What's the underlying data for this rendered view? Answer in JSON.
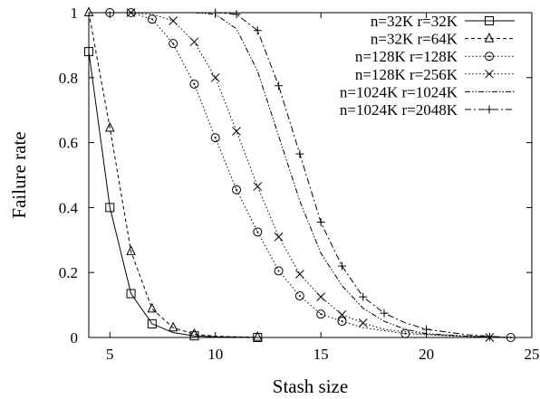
{
  "chart_data": {
    "type": "line",
    "title": "",
    "xlabel": "Stash size",
    "ylabel": "Failure rate",
    "xlim": [
      4,
      25
    ],
    "ylim": [
      0,
      1
    ],
    "xticks": [
      5,
      10,
      15,
      20,
      25
    ],
    "yticks": [
      0,
      0.2,
      0.4,
      0.6,
      0.8,
      1
    ],
    "ytick_labels": [
      "0",
      "0.2",
      "0.4",
      "0.6",
      "0.8",
      "1"
    ],
    "grid": false,
    "legend_position": "top-right",
    "series": [
      {
        "name": "n=32K r=32K",
        "line": "solid",
        "marker": "square",
        "points": [
          [
            4,
            0.88
          ],
          [
            5,
            0.4
          ],
          [
            6,
            0.135
          ],
          [
            7,
            0.042
          ],
          [
            8,
            0.015
          ],
          [
            9,
            0.005
          ],
          [
            10,
            0.002
          ],
          [
            11,
            0.001
          ],
          [
            12,
            0.0
          ]
        ],
        "marker_points": [
          [
            4,
            0.88
          ],
          [
            5,
            0.4
          ],
          [
            6,
            0.135
          ],
          [
            7,
            0.042
          ],
          [
            9,
            0.005
          ],
          [
            12,
            0.0
          ]
        ]
      },
      {
        "name": "n=32K r=64K",
        "line": "dashed",
        "marker": "triangle",
        "points": [
          [
            4,
            1.0
          ],
          [
            5,
            0.645
          ],
          [
            6,
            0.265
          ],
          [
            7,
            0.088
          ],
          [
            8,
            0.03
          ],
          [
            9,
            0.01
          ],
          [
            10,
            0.004
          ],
          [
            11,
            0.002
          ],
          [
            12,
            0.001
          ]
        ],
        "marker_points": [
          [
            4,
            1.0
          ],
          [
            5,
            0.645
          ],
          [
            6,
            0.265
          ],
          [
            7,
            0.088
          ],
          [
            8,
            0.03
          ],
          [
            9,
            0.01
          ],
          [
            12,
            0.001
          ]
        ]
      },
      {
        "name": "n=128K r=128K",
        "line": "dotted",
        "marker": "circle",
        "points": [
          [
            5,
            1.0
          ],
          [
            6,
            1.0
          ],
          [
            7,
            0.98
          ],
          [
            8,
            0.905
          ],
          [
            9,
            0.78
          ],
          [
            10,
            0.615
          ],
          [
            11,
            0.455
          ],
          [
            12,
            0.325
          ],
          [
            13,
            0.205
          ],
          [
            14,
            0.128
          ],
          [
            15,
            0.072
          ],
          [
            16,
            0.05
          ],
          [
            17,
            0.03
          ],
          [
            19,
            0.012
          ],
          [
            21,
            0.005
          ],
          [
            23,
            0.002
          ],
          [
            24,
            0.0
          ]
        ],
        "marker_points": [
          [
            5,
            1.0
          ],
          [
            6,
            1.0
          ],
          [
            7,
            0.98
          ],
          [
            8,
            0.905
          ],
          [
            9,
            0.78
          ],
          [
            10,
            0.615
          ],
          [
            11,
            0.455
          ],
          [
            12,
            0.325
          ],
          [
            13,
            0.205
          ],
          [
            14,
            0.128
          ],
          [
            15,
            0.072
          ],
          [
            16,
            0.05
          ],
          [
            19,
            0.012
          ],
          [
            24,
            0.0
          ]
        ]
      },
      {
        "name": "n=128K r=256K",
        "line": "dotted",
        "marker": "cross",
        "points": [
          [
            6,
            1.0
          ],
          [
            7,
            0.995
          ],
          [
            8,
            0.975
          ],
          [
            9,
            0.91
          ],
          [
            10,
            0.8
          ],
          [
            11,
            0.635
          ],
          [
            12,
            0.465
          ],
          [
            13,
            0.31
          ],
          [
            14,
            0.195
          ],
          [
            15,
            0.125
          ],
          [
            16,
            0.07
          ],
          [
            17,
            0.045
          ],
          [
            18,
            0.025
          ],
          [
            20,
            0.01
          ],
          [
            23,
            0.0
          ]
        ],
        "marker_points": [
          [
            6,
            1.0
          ],
          [
            8,
            0.975
          ],
          [
            9,
            0.91
          ],
          [
            10,
            0.8
          ],
          [
            11,
            0.635
          ],
          [
            12,
            0.465
          ],
          [
            13,
            0.31
          ],
          [
            14,
            0.195
          ],
          [
            15,
            0.125
          ],
          [
            16,
            0.07
          ],
          [
            17,
            0.045
          ],
          [
            23,
            0.0
          ]
        ]
      },
      {
        "name": "n=1024K r=1024K",
        "line": "dashdotdot",
        "marker": "none",
        "points": [
          [
            9,
            1.0
          ],
          [
            10,
            0.995
          ],
          [
            11,
            0.95
          ],
          [
            12,
            0.82
          ],
          [
            13,
            0.62
          ],
          [
            14,
            0.42
          ],
          [
            15,
            0.26
          ],
          [
            16,
            0.16
          ],
          [
            17,
            0.09
          ],
          [
            18,
            0.05
          ],
          [
            19,
            0.025
          ],
          [
            20,
            0.012
          ],
          [
            22,
            0.004
          ],
          [
            24,
            0.0
          ]
        ],
        "marker_points": []
      },
      {
        "name": "n=1024K r=2048K",
        "line": "dashdot",
        "marker": "plus",
        "points": [
          [
            10,
            1.0
          ],
          [
            11,
            0.995
          ],
          [
            12,
            0.945
          ],
          [
            13,
            0.775
          ],
          [
            14,
            0.565
          ],
          [
            15,
            0.355
          ],
          [
            16,
            0.22
          ],
          [
            17,
            0.125
          ],
          [
            18,
            0.075
          ],
          [
            19,
            0.045
          ],
          [
            20,
            0.025
          ],
          [
            22,
            0.008
          ],
          [
            24,
            0.0
          ]
        ],
        "marker_points": [
          [
            10,
            1.0
          ],
          [
            11,
            0.995
          ],
          [
            12,
            0.945
          ],
          [
            13,
            0.775
          ],
          [
            14,
            0.565
          ],
          [
            15,
            0.355
          ],
          [
            16,
            0.22
          ],
          [
            17,
            0.125
          ],
          [
            18,
            0.075
          ],
          [
            20,
            0.025
          ],
          [
            23,
            0.002
          ]
        ]
      }
    ]
  }
}
